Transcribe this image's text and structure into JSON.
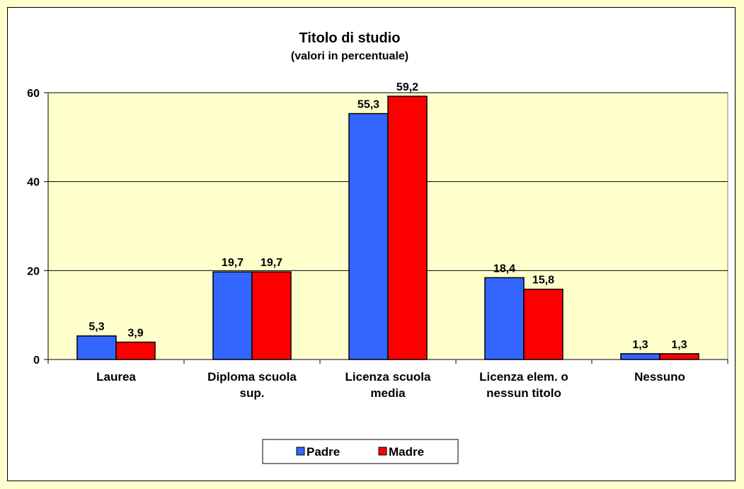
{
  "chart_data": {
    "type": "bar",
    "title": "Titolo di studio",
    "subtitle": "(valori in percentuale)",
    "xlabel": "",
    "ylabel": "",
    "categories": [
      [
        "Laurea"
      ],
      [
        "Diploma scuola",
        "sup."
      ],
      [
        "Licenza scuola",
        "media"
      ],
      [
        "Licenza elem. o",
        "nessun titolo"
      ],
      [
        "Nessuno"
      ]
    ],
    "y_ticks": [
      0,
      20,
      40,
      60
    ],
    "ylim": [
      0,
      60
    ],
    "grid": true,
    "legend_position": "bottom",
    "series": [
      {
        "name": "Padre",
        "color": "#3366FF",
        "values": [
          5.3,
          19.7,
          55.3,
          18.4,
          1.3
        ],
        "labels": [
          "5,3",
          "19,7",
          "55,3",
          "18,4",
          "1,3"
        ]
      },
      {
        "name": "Madre",
        "color": "#FF0000",
        "values": [
          3.9,
          19.7,
          59.2,
          15.8,
          1.3
        ],
        "labels": [
          "3,9",
          "19,7",
          "59,2",
          "15,8",
          "1,3"
        ]
      }
    ],
    "plot_background": "#FFFFCC",
    "page_background": "#FFFFCC"
  }
}
